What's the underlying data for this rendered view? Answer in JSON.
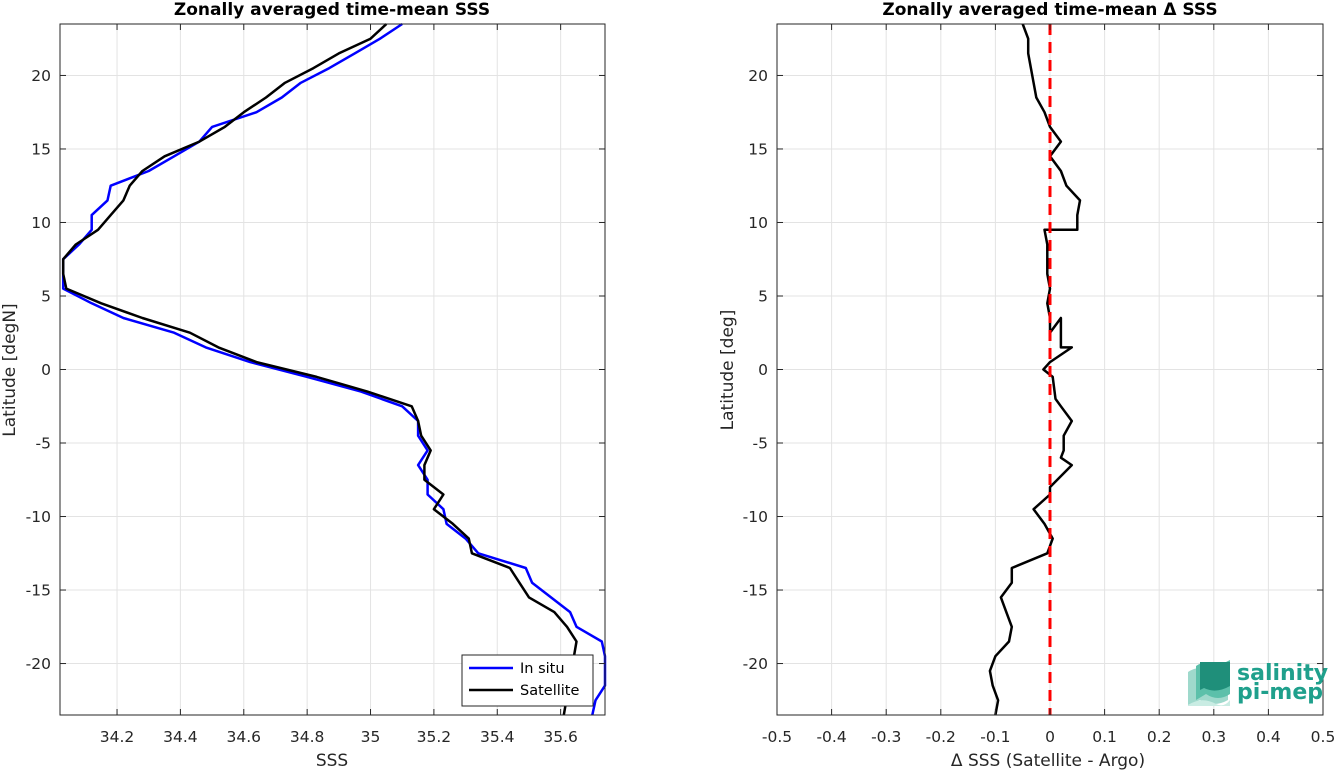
{
  "chart_data": [
    {
      "type": "line",
      "title": "Zonally averaged time-mean SSS",
      "xlabel": "SSS",
      "ylabel": "Latitude [degN]",
      "xlim": [
        34.02,
        35.74
      ],
      "ylim": [
        -23.5,
        23.5
      ],
      "xticks": [
        34.2,
        34.4,
        34.6,
        34.8,
        35,
        35.2,
        35.4,
        35.6
      ],
      "xtick_labels": [
        "34.2",
        "34.4",
        "34.6",
        "34.8",
        "35",
        "35.2",
        "35.4",
        "35.6"
      ],
      "yticks": [
        20,
        15,
        10,
        5,
        0,
        -5,
        -10,
        -15,
        -20
      ],
      "ytick_labels": [
        "20",
        "15",
        "10",
        "5",
        "0",
        "-5",
        "-10",
        "-15",
        "-20"
      ],
      "grid": true,
      "legend_position": "bottom-right",
      "series": [
        {
          "name": "In situ",
          "color": "#0000ff",
          "points": [
            [
              35.1,
              23.5
            ],
            [
              35.03,
              22.5
            ],
            [
              34.95,
              21.5
            ],
            [
              34.87,
              20.5
            ],
            [
              34.78,
              19.5
            ],
            [
              34.72,
              18.5
            ],
            [
              34.64,
              17.5
            ],
            [
              34.5,
              16.5
            ],
            [
              34.46,
              15.5
            ],
            [
              34.38,
              14.5
            ],
            [
              34.3,
              13.5
            ],
            [
              34.18,
              12.5
            ],
            [
              34.17,
              11.5
            ],
            [
              34.12,
              10.5
            ],
            [
              34.12,
              9.5
            ],
            [
              34.08,
              8.5
            ],
            [
              34.03,
              7.5
            ],
            [
              34.03,
              6.5
            ],
            [
              34.03,
              5.5
            ],
            [
              34.12,
              4.5
            ],
            [
              34.22,
              3.5
            ],
            [
              34.38,
              2.5
            ],
            [
              34.48,
              1.5
            ],
            [
              34.62,
              0.5
            ],
            [
              34.8,
              -0.5
            ],
            [
              34.97,
              -1.5
            ],
            [
              35.1,
              -2.5
            ],
            [
              35.15,
              -3.5
            ],
            [
              35.15,
              -4.5
            ],
            [
              35.18,
              -5.5
            ],
            [
              35.15,
              -6.5
            ],
            [
              35.18,
              -7.5
            ],
            [
              35.18,
              -8.5
            ],
            [
              35.23,
              -9.5
            ],
            [
              35.24,
              -10.5
            ],
            [
              35.3,
              -11.5
            ],
            [
              35.34,
              -12.5
            ],
            [
              35.49,
              -13.5
            ],
            [
              35.51,
              -14.5
            ],
            [
              35.63,
              -16.5
            ],
            [
              35.65,
              -17.5
            ],
            [
              35.73,
              -18.5
            ],
            [
              35.74,
              -19.5
            ],
            [
              35.74,
              -21.5
            ],
            [
              35.71,
              -22.5
            ],
            [
              35.7,
              -23.5
            ]
          ]
        },
        {
          "name": "Satellite",
          "color": "#000000",
          "points": [
            [
              35.05,
              23.5
            ],
            [
              35.0,
              22.5
            ],
            [
              34.9,
              21.5
            ],
            [
              34.82,
              20.5
            ],
            [
              34.73,
              19.5
            ],
            [
              34.67,
              18.5
            ],
            [
              34.6,
              17.5
            ],
            [
              34.54,
              16.5
            ],
            [
              34.46,
              15.5
            ],
            [
              34.35,
              14.5
            ],
            [
              34.28,
              13.5
            ],
            [
              34.24,
              12.5
            ],
            [
              34.22,
              11.5
            ],
            [
              34.18,
              10.5
            ],
            [
              34.14,
              9.5
            ],
            [
              34.07,
              8.5
            ],
            [
              34.03,
              7.5
            ],
            [
              34.03,
              6.5
            ],
            [
              34.04,
              5.5
            ],
            [
              34.15,
              4.5
            ],
            [
              34.28,
              3.5
            ],
            [
              34.43,
              2.5
            ],
            [
              34.52,
              1.5
            ],
            [
              34.64,
              0.5
            ],
            [
              34.83,
              -0.5
            ],
            [
              34.99,
              -1.5
            ],
            [
              35.13,
              -2.5
            ],
            [
              35.15,
              -3.5
            ],
            [
              35.16,
              -4.5
            ],
            [
              35.19,
              -5.5
            ],
            [
              35.17,
              -6.5
            ],
            [
              35.17,
              -7.5
            ],
            [
              35.23,
              -8.5
            ],
            [
              35.2,
              -9.5
            ],
            [
              35.26,
              -10.5
            ],
            [
              35.31,
              -11.5
            ],
            [
              35.32,
              -12.5
            ],
            [
              35.44,
              -13.5
            ],
            [
              35.47,
              -14.5
            ],
            [
              35.5,
              -15.5
            ],
            [
              35.58,
              -16.5
            ],
            [
              35.62,
              -17.5
            ],
            [
              35.65,
              -18.5
            ],
            [
              35.61,
              -23.5
            ]
          ]
        }
      ]
    },
    {
      "type": "line",
      "title": "Zonally averaged time-mean Δ SSS",
      "xlabel": "Δ SSS (Satellite - Argo)",
      "ylabel": "Latitude [deg]",
      "xlim": [
        -0.5,
        0.5
      ],
      "ylim": [
        -23.5,
        23.5
      ],
      "xticks": [
        -0.5,
        -0.4,
        -0.3,
        -0.2,
        -0.1,
        0,
        0.1,
        0.2,
        0.3,
        0.4,
        0.5
      ],
      "xtick_labels": [
        "-0.5",
        "-0.4",
        "-0.3",
        "-0.2",
        "-0.1",
        "0",
        "0.1",
        "0.2",
        "0.3",
        "0.4",
        "0.5"
      ],
      "yticks": [
        20,
        15,
        10,
        5,
        0,
        -5,
        -10,
        -15,
        -20
      ],
      "ytick_labels": [
        "20",
        "15",
        "10",
        "5",
        "0",
        "-5",
        "-10",
        "-15",
        "-20"
      ],
      "grid": true,
      "reference_line": {
        "x": 0,
        "color": "#ff0000",
        "style": "dashed"
      },
      "series": [
        {
          "color": "#000000",
          "points": [
            [
              -0.05,
              23.5
            ],
            [
              -0.04,
              22.5
            ],
            [
              -0.04,
              21.5
            ],
            [
              -0.035,
              20.5
            ],
            [
              -0.03,
              19.5
            ],
            [
              -0.025,
              18.5
            ],
            [
              -0.01,
              17.5
            ],
            [
              0,
              16.5
            ],
            [
              0.02,
              15.5
            ],
            [
              0,
              14.5
            ],
            [
              0.02,
              13.5
            ],
            [
              0.03,
              12.5
            ],
            [
              0.055,
              11.5
            ],
            [
              0.05,
              10.5
            ],
            [
              0.05,
              9.5
            ],
            [
              -0.01,
              9.5
            ],
            [
              -0.005,
              8.5
            ],
            [
              -0.005,
              7.5
            ],
            [
              -0.005,
              6.5
            ],
            [
              0,
              5.5
            ],
            [
              -0.005,
              4.5
            ],
            [
              0,
              3.5
            ],
            [
              0,
              2.5
            ],
            [
              0.02,
              3.5
            ],
            [
              0.02,
              1.5
            ],
            [
              0.04,
              1.5
            ],
            [
              0,
              0.5
            ],
            [
              -0.012,
              0
            ],
            [
              0.005,
              -0.5
            ],
            [
              0.01,
              -2
            ],
            [
              0.02,
              -2.5
            ],
            [
              0.04,
              -3.5
            ],
            [
              0.025,
              -4.5
            ],
            [
              0.025,
              -5.5
            ],
            [
              0.02,
              -6
            ],
            [
              0.04,
              -6.5
            ],
            [
              0,
              -8
            ],
            [
              0,
              -8.5
            ],
            [
              -0.03,
              -9.5
            ],
            [
              -0.01,
              -10.5
            ],
            [
              0.005,
              -11.5
            ],
            [
              -0.005,
              -12.5
            ],
            [
              -0.07,
              -13.5
            ],
            [
              -0.07,
              -14.5
            ],
            [
              -0.09,
              -15.5
            ],
            [
              -0.08,
              -16.5
            ],
            [
              -0.07,
              -17.5
            ],
            [
              -0.075,
              -18.5
            ],
            [
              -0.1,
              -19.5
            ],
            [
              -0.11,
              -20.5
            ],
            [
              -0.105,
              -21.5
            ],
            [
              -0.095,
              -22.5
            ],
            [
              -0.1,
              -23.5
            ]
          ]
        }
      ]
    }
  ],
  "legend": {
    "items": [
      {
        "label": "In situ",
        "color": "#0000ff"
      },
      {
        "label": "Satellite",
        "color": "#000000"
      }
    ]
  },
  "logo": {
    "line1": "salinity",
    "line2": "pi-mep",
    "color": "#1fa08c"
  }
}
